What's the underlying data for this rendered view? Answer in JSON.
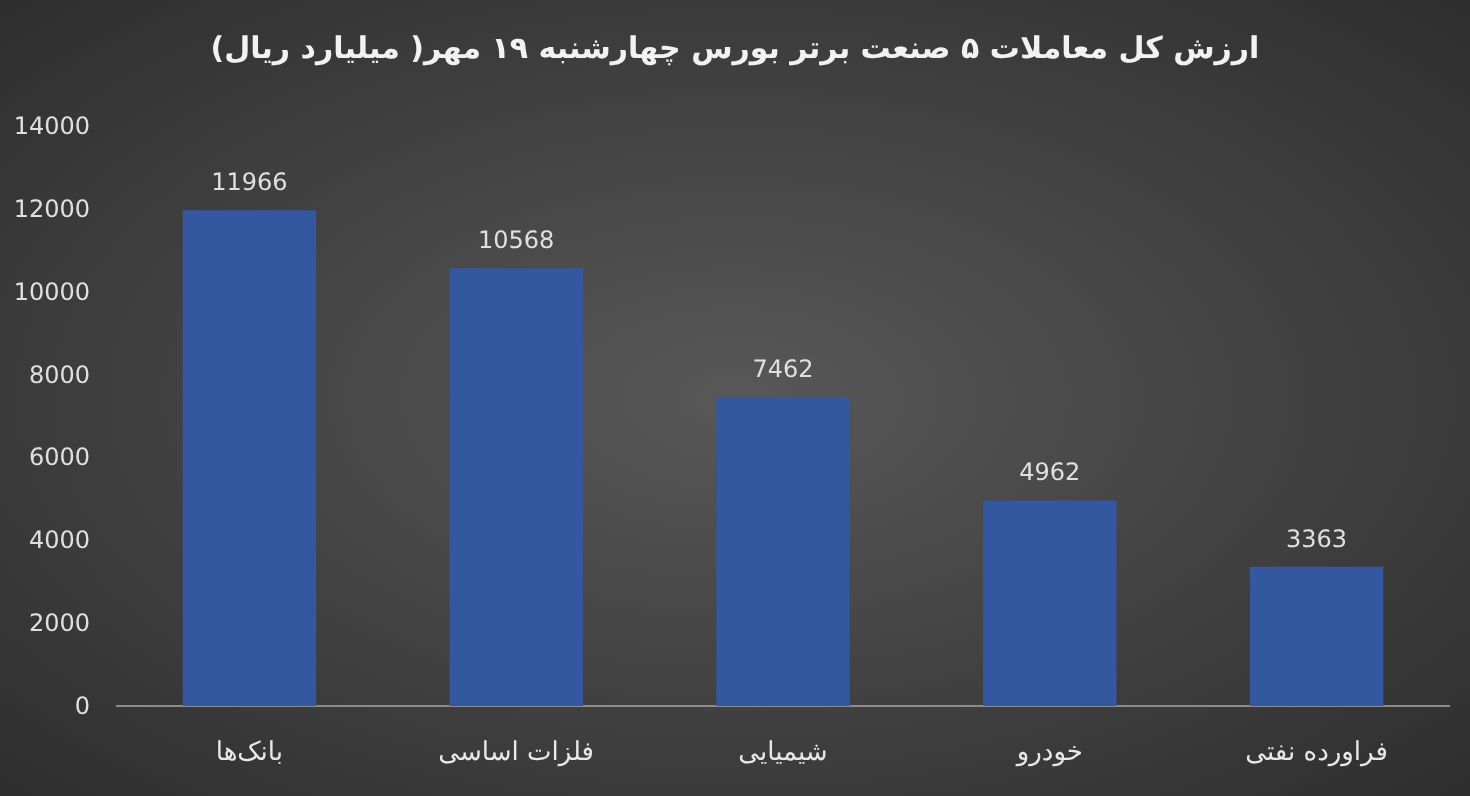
{
  "chart_data": {
    "type": "bar",
    "title": "ارزش کل معاملات ۵ صنعت برتر بورس چهارشنبه ۱۹ مهر( میلیارد ریال)",
    "categories": [
      "بانک‌ها",
      "فلزات اساسی",
      "شیمیایی",
      "خودرو",
      "فراورده نفتی"
    ],
    "values": [
      11966,
      10568,
      7462,
      4962,
      3363
    ],
    "color": "#3358a0",
    "ylim": [
      0,
      14000
    ],
    "yticks": [
      0,
      2000,
      4000,
      6000,
      8000,
      10000,
      12000,
      14000
    ],
    "data_labels": true
  }
}
